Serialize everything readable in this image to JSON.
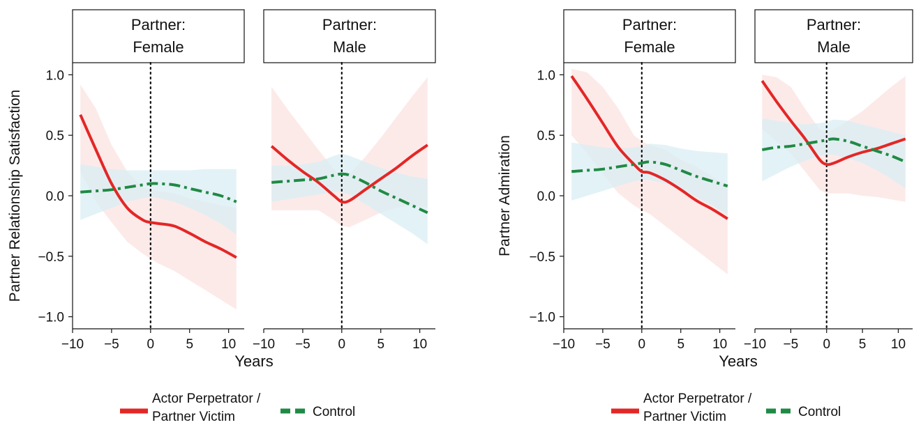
{
  "colors": {
    "victim_line": "#e32726",
    "control_line": "#1f8a44",
    "victim_band": "#fbe3e1",
    "control_band": "#d9eef3"
  },
  "chart_data": [
    {
      "type": "line",
      "ylabel": "Partner Relationship Satisfaction",
      "xlabel": "Years",
      "xlim": [
        -10,
        12
      ],
      "ylim": [
        -1.1,
        1.1
      ],
      "xticks": [
        -10,
        -5,
        0,
        5,
        10
      ],
      "xtick_labels": [
        "−10",
        "−5",
        "0",
        "5",
        "10"
      ],
      "yticks": [
        -1.0,
        -0.5,
        0.0,
        0.5,
        1.0
      ],
      "ytick_labels": [
        "−1.0",
        "−0.5",
        "0.0",
        "0.5",
        "1.0"
      ],
      "reference_line_x": 0,
      "legend_position": "bottom",
      "facets": [
        {
          "label_line1": "Partner:",
          "label_line2": "Female",
          "series": [
            {
              "name": "Actor Perpetrator / Partner Victim",
              "x": [
                -9,
                -7,
                -5,
                -3,
                -1,
                0,
                1,
                3,
                5,
                7,
                9,
                11
              ],
              "y": [
                0.67,
                0.38,
                0.1,
                -0.1,
                -0.2,
                -0.22,
                -0.23,
                -0.25,
                -0.31,
                -0.38,
                -0.44,
                -0.51
              ],
              "lower": [
                0.2,
                -0.05,
                -0.22,
                -0.38,
                -0.48,
                -0.52,
                -0.56,
                -0.62,
                -0.7,
                -0.78,
                -0.86,
                -0.94
              ],
              "upper": [
                0.92,
                0.72,
                0.42,
                0.2,
                0.07,
                0.05,
                0.04,
                0.02,
                -0.02,
                -0.05,
                -0.08,
                -0.1
              ]
            },
            {
              "name": "Control",
              "x": [
                -9,
                -7,
                -5,
                -3,
                -1,
                0,
                1,
                3,
                5,
                7,
                9,
                11
              ],
              "y": [
                0.03,
                0.04,
                0.05,
                0.07,
                0.09,
                0.1,
                0.1,
                0.09,
                0.06,
                0.03,
                0.0,
                -0.05
              ],
              "lower": [
                -0.2,
                -0.15,
                -0.1,
                -0.05,
                -0.02,
                -0.01,
                -0.02,
                -0.05,
                -0.1,
                -0.16,
                -0.23,
                -0.32
              ],
              "upper": [
                0.26,
                0.24,
                0.22,
                0.21,
                0.21,
                0.21,
                0.21,
                0.21,
                0.21,
                0.22,
                0.22,
                0.22
              ]
            }
          ]
        },
        {
          "label_line1": "Partner:",
          "label_line2": "Male",
          "series": [
            {
              "name": "Actor Perpetrator / Partner Victim",
              "x": [
                -9,
                -7,
                -5,
                -3,
                -1,
                0,
                1,
                3,
                5,
                7,
                9,
                11
              ],
              "y": [
                0.41,
                0.3,
                0.2,
                0.11,
                0.0,
                -0.05,
                -0.04,
                0.05,
                0.14,
                0.23,
                0.33,
                0.42
              ],
              "lower": [
                -0.12,
                -0.12,
                -0.12,
                -0.12,
                -0.2,
                -0.25,
                -0.26,
                -0.2,
                -0.14,
                -0.1,
                -0.08,
                -0.1
              ],
              "upper": [
                0.9,
                0.72,
                0.55,
                0.38,
                0.22,
                0.15,
                0.18,
                0.32,
                0.48,
                0.65,
                0.82,
                0.98
              ]
            },
            {
              "name": "Control",
              "x": [
                -9,
                -7,
                -5,
                -3,
                -1,
                0,
                1,
                3,
                5,
                7,
                9,
                11
              ],
              "y": [
                0.11,
                0.12,
                0.13,
                0.14,
                0.17,
                0.18,
                0.17,
                0.11,
                0.04,
                -0.02,
                -0.08,
                -0.14
              ],
              "lower": [
                -0.05,
                -0.03,
                -0.01,
                0.01,
                0.03,
                0.03,
                0.01,
                -0.07,
                -0.15,
                -0.23,
                -0.31,
                -0.4
              ],
              "upper": [
                0.25,
                0.25,
                0.26,
                0.28,
                0.33,
                0.35,
                0.33,
                0.28,
                0.23,
                0.19,
                0.16,
                0.14
              ]
            }
          ]
        }
      ]
    },
    {
      "type": "line",
      "ylabel": "Partner Admiration",
      "xlabel": "Years",
      "xlim": [
        -10,
        12
      ],
      "ylim": [
        -1.1,
        1.1
      ],
      "xticks": [
        -10,
        -5,
        0,
        5,
        10
      ],
      "xtick_labels": [
        "−10",
        "−5",
        "0",
        "5",
        "10"
      ],
      "yticks": [
        -1.0,
        -0.5,
        0.0,
        0.5,
        1.0
      ],
      "ytick_labels": [
        "−1.0",
        "−0.5",
        "0.0",
        "0.5",
        "1.0"
      ],
      "reference_line_x": 0,
      "legend_position": "bottom",
      "facets": [
        {
          "label_line1": "Partner:",
          "label_line2": "Female",
          "series": [
            {
              "name": "Actor Perpetrator / Partner Victim",
              "x": [
                -9,
                -7,
                -5,
                -3,
                -1,
                0,
                1,
                3,
                5,
                7,
                9,
                11
              ],
              "y": [
                0.99,
                0.8,
                0.6,
                0.4,
                0.26,
                0.2,
                0.19,
                0.13,
                0.05,
                -0.04,
                -0.11,
                -0.19
              ],
              "lower": [
                0.5,
                0.35,
                0.18,
                0.02,
                -0.08,
                -0.12,
                -0.15,
                -0.25,
                -0.35,
                -0.45,
                -0.55,
                -0.65
              ],
              "upper": [
                1.05,
                1.02,
                0.9,
                0.72,
                0.5,
                0.45,
                0.42,
                0.38,
                0.3,
                0.24,
                0.16,
                0.08
              ]
            },
            {
              "name": "Control",
              "x": [
                -9,
                -7,
                -5,
                -3,
                -1,
                0,
                1,
                3,
                5,
                7,
                9,
                11
              ],
              "y": [
                0.2,
                0.21,
                0.22,
                0.24,
                0.26,
                0.27,
                0.28,
                0.26,
                0.21,
                0.16,
                0.12,
                0.08
              ],
              "lower": [
                -0.04,
                0.0,
                0.04,
                0.08,
                0.12,
                0.13,
                0.13,
                0.1,
                0.05,
                -0.01,
                -0.08,
                -0.16
              ],
              "upper": [
                0.44,
                0.42,
                0.4,
                0.39,
                0.4,
                0.41,
                0.43,
                0.42,
                0.39,
                0.37,
                0.36,
                0.35
              ]
            }
          ]
        },
        {
          "label_line1": "Partner:",
          "label_line2": "Male",
          "series": [
            {
              "name": "Actor Perpetrator / Partner Victim",
              "x": [
                -9,
                -7,
                -5,
                -3,
                -1,
                0,
                1,
                3,
                5,
                7,
                9,
                11
              ],
              "y": [
                0.95,
                0.78,
                0.62,
                0.47,
                0.3,
                0.26,
                0.27,
                0.32,
                0.36,
                0.39,
                0.43,
                0.47
              ],
              "lower": [
                0.55,
                0.45,
                0.35,
                0.2,
                0.05,
                0.02,
                0.02,
                0.02,
                0.0,
                -0.01,
                -0.03,
                -0.05
              ],
              "upper": [
                1.0,
                0.98,
                0.9,
                0.72,
                0.55,
                0.52,
                0.55,
                0.62,
                0.7,
                0.8,
                0.9,
                0.99
              ]
            },
            {
              "name": "Control",
              "x": [
                -9,
                -7,
                -5,
                -3,
                -1,
                0,
                1,
                3,
                5,
                7,
                9,
                11
              ],
              "y": [
                0.38,
                0.4,
                0.41,
                0.43,
                0.45,
                0.46,
                0.47,
                0.45,
                0.41,
                0.37,
                0.33,
                0.28
              ],
              "lower": [
                0.12,
                0.18,
                0.24,
                0.29,
                0.33,
                0.34,
                0.34,
                0.31,
                0.27,
                0.21,
                0.14,
                0.06
              ],
              "upper": [
                0.64,
                0.62,
                0.6,
                0.59,
                0.6,
                0.61,
                0.63,
                0.62,
                0.59,
                0.56,
                0.53,
                0.5
              ]
            }
          ]
        }
      ]
    }
  ],
  "legend": {
    "victim_label_line1": "Actor Perpetrator /",
    "victim_label_line2": "Partner Victim",
    "control_label": "Control"
  }
}
